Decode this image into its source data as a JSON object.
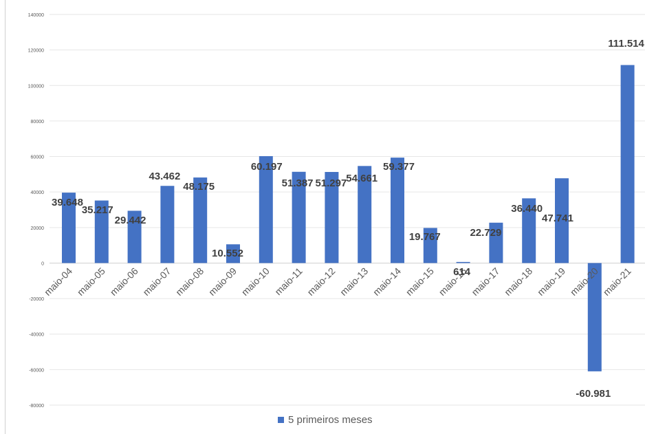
{
  "chart_data": {
    "type": "bar",
    "title": "",
    "xlabel": "",
    "ylabel": "",
    "ylim": [
      -80000,
      140000
    ],
    "yticks": [
      140000,
      120000,
      100000,
      80000,
      60000,
      40000,
      20000,
      0,
      -20000,
      -40000,
      -60000,
      -80000
    ],
    "grid": true,
    "legend_position": "bottom",
    "categories": [
      "maio-04",
      "maio-05",
      "maio-06",
      "maio-07",
      "maio-08",
      "maio-09",
      "maio-10",
      "maio-11",
      "maio-12",
      "maio-13",
      "maio-14",
      "maio-15",
      "maio-16",
      "maio-17",
      "maio-18",
      "maio-19",
      "maio-20",
      "maio-21"
    ],
    "series": [
      {
        "name": "5 primeiros meses",
        "color": "#4472c4",
        "values": [
          39648,
          35217,
          29442,
          43462,
          48175,
          10552,
          60197,
          51387,
          51297,
          54661,
          59377,
          19767,
          614,
          22729,
          36440,
          47741,
          -60981,
          111514
        ],
        "data_labels": [
          "39.648",
          "35.217",
          "29.442",
          "43.462",
          "48.175",
          "10.552",
          "60.197",
          "51.387",
          "51.297",
          "54.661",
          "59.377",
          "19.767",
          "614",
          "22.729",
          "36.440",
          "47.741",
          "-60.981",
          "111.514"
        ]
      }
    ]
  }
}
